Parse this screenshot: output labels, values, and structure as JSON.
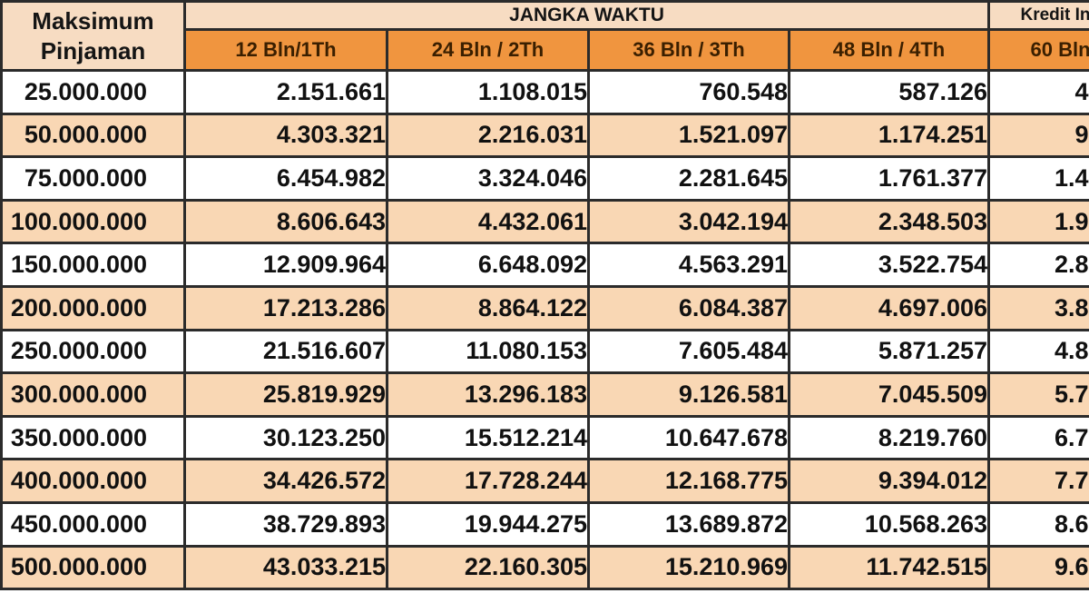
{
  "colors": {
    "header_bg": "#f7dcc2",
    "subheader_bg": "#f0953f",
    "subheader_text": "#3a1f00",
    "row_bg": "#ffffff",
    "row_alt_bg": "#f9d7b4",
    "border": "#2b2b2b",
    "text": "#111111"
  },
  "table": {
    "corner_header": {
      "line1": "Maksimum",
      "line2": "Pinjaman"
    },
    "group_header": "JANGKA WAKTU",
    "right_group_header_clipped": "Kredit In",
    "tenor_columns": [
      "12 Bln/1Th",
      "24 Bln / 2Th",
      "36 Bln / 3Th",
      "48 Bln / 4Th"
    ],
    "right_tenor_column_clipped": "60 Bln",
    "rows": [
      [
        "25.000.000",
        "2.151.661",
        "1.108.015",
        "760.548",
        "587.126",
        "4"
      ],
      [
        "50.000.000",
        "4.303.321",
        "2.216.031",
        "1.521.097",
        "1.174.251",
        "9"
      ],
      [
        "75.000.000",
        "6.454.982",
        "3.324.046",
        "2.281.645",
        "1.761.377",
        "1.4"
      ],
      [
        "100.000.000",
        "8.606.643",
        "4.432.061",
        "3.042.194",
        "2.348.503",
        "1.9"
      ],
      [
        "150.000.000",
        "12.909.964",
        "6.648.092",
        "4.563.291",
        "3.522.754",
        "2.8"
      ],
      [
        "200.000.000",
        "17.213.286",
        "8.864.122",
        "6.084.387",
        "4.697.006",
        "3.8"
      ],
      [
        "250.000.000",
        "21.516.607",
        "11.080.153",
        "7.605.484",
        "5.871.257",
        "4.8"
      ],
      [
        "300.000.000",
        "25.819.929",
        "13.296.183",
        "9.126.581",
        "7.045.509",
        "5.7"
      ],
      [
        "350.000.000",
        "30.123.250",
        "15.512.214",
        "10.647.678",
        "8.219.760",
        "6.7"
      ],
      [
        "400.000.000",
        "34.426.572",
        "17.728.244",
        "12.168.775",
        "9.394.012",
        "7.7"
      ],
      [
        "450.000.000",
        "38.729.893",
        "19.944.275",
        "13.689.872",
        "10.568.263",
        "8.6"
      ],
      [
        "500.000.000",
        "43.033.215",
        "22.160.305",
        "15.210.969",
        "11.742.515",
        "9.6"
      ]
    ]
  }
}
